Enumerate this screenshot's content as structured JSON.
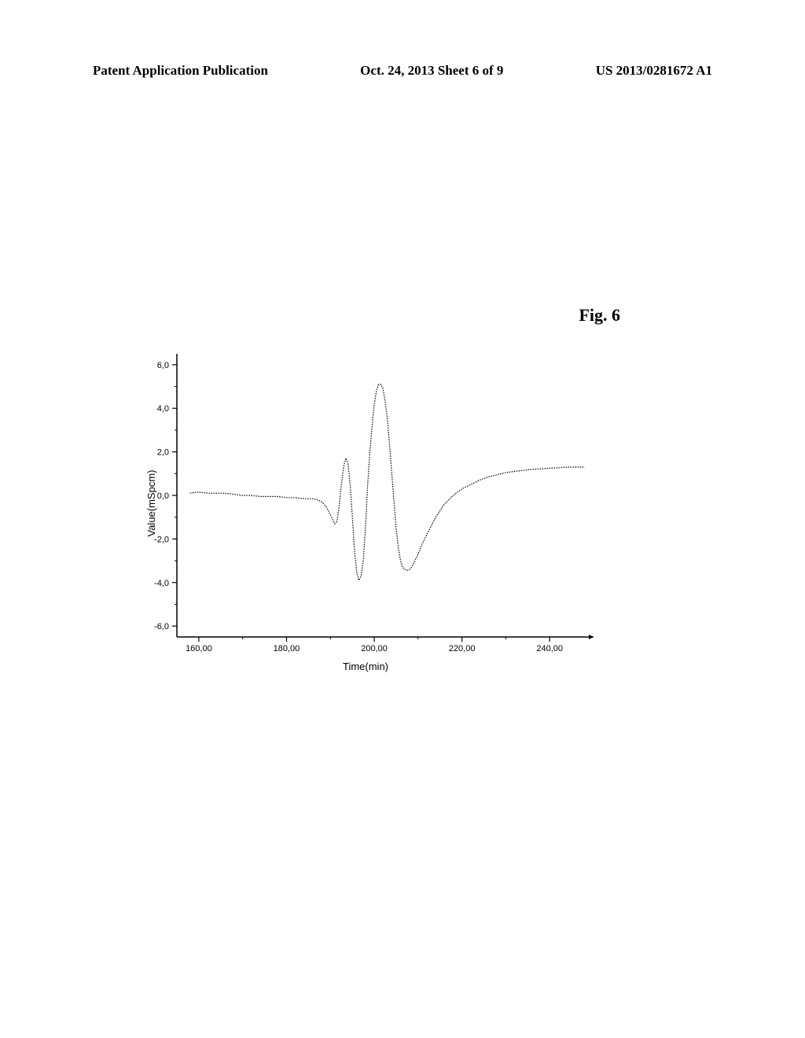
{
  "header": {
    "left": "Patent Application Publication",
    "center": "Oct. 24, 2013  Sheet 6 of 9",
    "right": "US 2013/0281672 A1"
  },
  "figure": {
    "label": "Fig. 6"
  },
  "chart": {
    "type": "line",
    "xlabel": "Time(min)",
    "ylabel": "Value(mSpcm)",
    "xlim": [
      155,
      250
    ],
    "ylim": [
      -6.5,
      6.5
    ],
    "yticks": [
      -6.0,
      -4.0,
      -2.0,
      0.0,
      2.0,
      4.0,
      6.0
    ],
    "ytick_labels": [
      "-6,0",
      "-4,0",
      "-2,0",
      "0,0",
      "2,0",
      "4,0",
      "6,0"
    ],
    "xticks": [
      160,
      180,
      200,
      220,
      240
    ],
    "xtick_labels": [
      "160,00",
      "180,00",
      "200,00",
      "220,00",
      "240,00"
    ],
    "line_color": "#000000",
    "line_width": 1.2,
    "background_color": "#ffffff",
    "axis_color": "#000000",
    "label_fontsize": 13,
    "tick_fontsize": 11,
    "data": [
      [
        158,
        0.1
      ],
      [
        160,
        0.15
      ],
      [
        162,
        0.1
      ],
      [
        164,
        0.1
      ],
      [
        166,
        0.1
      ],
      [
        168,
        0.05
      ],
      [
        170,
        0.0
      ],
      [
        172,
        0.0
      ],
      [
        174,
        -0.05
      ],
      [
        176,
        -0.05
      ],
      [
        178,
        -0.05
      ],
      [
        180,
        -0.1
      ],
      [
        182,
        -0.1
      ],
      [
        184,
        -0.15
      ],
      [
        185,
        -0.15
      ],
      [
        186,
        -0.15
      ],
      [
        187,
        -0.2
      ],
      [
        188,
        -0.3
      ],
      [
        189,
        -0.5
      ],
      [
        190,
        -0.9
      ],
      [
        191,
        -1.3
      ],
      [
        191.5,
        -1.2
      ],
      [
        192,
        -0.5
      ],
      [
        192.5,
        0.5
      ],
      [
        193,
        1.3
      ],
      [
        193.5,
        1.7
      ],
      [
        194,
        1.5
      ],
      [
        194.5,
        0.5
      ],
      [
        195,
        -1.0
      ],
      [
        195.5,
        -2.5
      ],
      [
        196,
        -3.5
      ],
      [
        196.5,
        -3.9
      ],
      [
        197,
        -3.7
      ],
      [
        197.5,
        -3.0
      ],
      [
        198,
        -1.5
      ],
      [
        198.5,
        0.5
      ],
      [
        199,
        2.0
      ],
      [
        199.5,
        3.2
      ],
      [
        200,
        4.2
      ],
      [
        200.5,
        4.8
      ],
      [
        201,
        5.1
      ],
      [
        201.5,
        5.1
      ],
      [
        202,
        4.9
      ],
      [
        202.5,
        4.3
      ],
      [
        203,
        3.5
      ],
      [
        203.5,
        2.3
      ],
      [
        204,
        1.0
      ],
      [
        204.5,
        -0.3
      ],
      [
        205,
        -1.5
      ],
      [
        205.5,
        -2.4
      ],
      [
        206,
        -3.0
      ],
      [
        206.5,
        -3.3
      ],
      [
        207,
        -3.4
      ],
      [
        207.5,
        -3.45
      ],
      [
        208,
        -3.4
      ],
      [
        208.5,
        -3.3
      ],
      [
        209,
        -3.1
      ],
      [
        210,
        -2.7
      ],
      [
        211,
        -2.2
      ],
      [
        212,
        -1.8
      ],
      [
        213,
        -1.4
      ],
      [
        214,
        -1.0
      ],
      [
        215,
        -0.7
      ],
      [
        216,
        -0.4
      ],
      [
        218,
        0.0
      ],
      [
        220,
        0.3
      ],
      [
        222,
        0.5
      ],
      [
        224,
        0.7
      ],
      [
        226,
        0.85
      ],
      [
        228,
        0.95
      ],
      [
        230,
        1.05
      ],
      [
        232,
        1.1
      ],
      [
        234,
        1.15
      ],
      [
        236,
        1.2
      ],
      [
        238,
        1.22
      ],
      [
        240,
        1.25
      ],
      [
        242,
        1.27
      ],
      [
        244,
        1.3
      ],
      [
        246,
        1.3
      ],
      [
        248,
        1.3
      ]
    ]
  }
}
